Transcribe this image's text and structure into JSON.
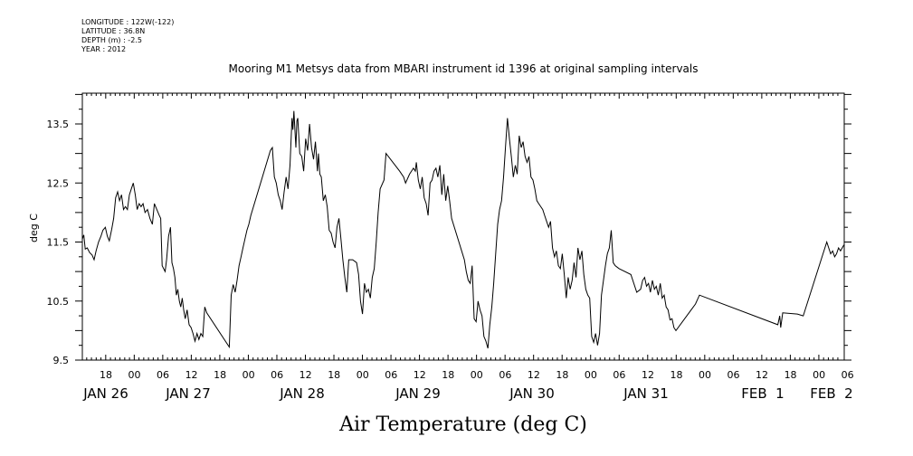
{
  "meta": {
    "longitude": "LONGITUDE : 122W(-122)",
    "latitude": "LATITUDE : 36.8N",
    "depth": "DEPTH (m) : -2.5",
    "year": "YEAR : 2012"
  },
  "chart_data": {
    "type": "line",
    "title": "Mooring M1 Metsys data from MBARI instrument id 1396 at original sampling intervals",
    "xlabel": "Air Temperature (deg C)",
    "ylabel": "deg C",
    "ylim": [
      9.5,
      14.0
    ],
    "yticks": [
      9.5,
      10.5,
      11.5,
      12.5,
      13.5
    ],
    "xlim_hours": [
      0,
      168
    ],
    "x_start": "2012-01-25T12:00",
    "hour_tick_labels": [
      {
        "t": 6,
        "label": "18"
      },
      {
        "t": 12,
        "label": "00"
      },
      {
        "t": 18,
        "label": "06"
      },
      {
        "t": 24,
        "label": "12"
      },
      {
        "t": 30,
        "label": "18"
      },
      {
        "t": 36,
        "label": "00"
      },
      {
        "t": 42,
        "label": "06"
      },
      {
        "t": 48,
        "label": "12"
      },
      {
        "t": 54,
        "label": "18"
      },
      {
        "t": 60,
        "label": "00"
      },
      {
        "t": 66,
        "label": "06"
      },
      {
        "t": 72,
        "label": "12"
      },
      {
        "t": 78,
        "label": "18"
      },
      {
        "t": 84,
        "label": "00"
      },
      {
        "t": 90,
        "label": "06"
      },
      {
        "t": 96,
        "label": "12"
      },
      {
        "t": 102,
        "label": "18"
      },
      {
        "t": 108,
        "label": "00"
      },
      {
        "t": 114,
        "label": "06"
      },
      {
        "t": 120,
        "label": "12"
      },
      {
        "t": 126,
        "label": "18"
      },
      {
        "t": 132,
        "label": "00"
      },
      {
        "t": 138,
        "label": "06"
      },
      {
        "t": 144,
        "label": "12"
      },
      {
        "t": 150,
        "label": "18"
      },
      {
        "t": 156,
        "label": "00"
      },
      {
        "t": 162,
        "label": "06"
      },
      {
        "t": 168,
        "label": "12"
      },
      {
        "t": 174,
        "label": "18"
      },
      {
        "t": 180,
        "label": "00"
      }
    ],
    "day_labels": [
      {
        "t": 0,
        "label": "JAN 26"
      },
      {
        "t": 24,
        "label": "JAN 27"
      },
      {
        "t": 48,
        "label": "JAN 28"
      },
      {
        "t": 72,
        "label": "JAN 29"
      },
      {
        "t": 96,
        "label": "JAN 30"
      },
      {
        "t": 120,
        "label": "JAN 31"
      },
      {
        "t": 144,
        "label": "FEB  1"
      },
      {
        "t": 162,
        "label": "FEB  2"
      }
    ],
    "series": [
      {
        "color": "#000000",
        "points": [
          [
            0.0,
            11.55
          ],
          [
            0.3,
            11.62
          ],
          [
            0.6,
            11.38
          ],
          [
            1.0,
            11.4
          ],
          [
            1.5,
            11.32
          ],
          [
            2.0,
            11.28
          ],
          [
            2.4,
            11.2
          ],
          [
            2.8,
            11.35
          ],
          [
            3.3,
            11.5
          ],
          [
            3.8,
            11.6
          ],
          [
            4.2,
            11.7
          ],
          [
            4.7,
            11.75
          ],
          [
            5.1,
            11.6
          ],
          [
            5.5,
            11.52
          ],
          [
            6.0,
            11.72
          ],
          [
            6.4,
            11.9
          ],
          [
            6.8,
            12.25
          ],
          [
            7.2,
            12.35
          ],
          [
            7.6,
            12.2
          ],
          [
            8.0,
            12.3
          ],
          [
            8.4,
            12.05
          ],
          [
            8.8,
            12.1
          ],
          [
            9.2,
            12.05
          ],
          [
            9.6,
            12.3
          ],
          [
            10.0,
            12.4
          ],
          [
            10.4,
            12.5
          ],
          [
            10.8,
            12.3
          ],
          [
            11.2,
            12.05
          ],
          [
            11.6,
            12.15
          ],
          [
            12.0,
            12.1
          ],
          [
            12.4,
            12.15
          ],
          [
            12.8,
            12.0
          ],
          [
            13.3,
            12.05
          ],
          [
            13.8,
            11.9
          ],
          [
            14.3,
            11.8
          ],
          [
            14.7,
            12.15
          ],
          [
            15.2,
            12.05
          ],
          [
            15.7,
            11.95
          ],
          [
            16.0,
            11.9
          ],
          [
            16.3,
            11.1
          ],
          [
            16.6,
            11.05
          ],
          [
            16.9,
            11.0
          ],
          [
            17.2,
            11.2
          ],
          [
            17.6,
            11.6
          ],
          [
            18.0,
            11.75
          ],
          [
            18.3,
            11.15
          ],
          [
            18.6,
            11.05
          ],
          [
            18.9,
            10.9
          ],
          [
            19.2,
            10.6
          ],
          [
            19.5,
            10.7
          ],
          [
            19.8,
            10.5
          ],
          [
            20.1,
            10.4
          ],
          [
            20.4,
            10.55
          ],
          [
            20.7,
            10.35
          ],
          [
            21.0,
            10.2
          ],
          [
            21.4,
            10.35
          ],
          [
            21.8,
            10.1
          ],
          [
            22.2,
            10.05
          ],
          [
            22.6,
            9.95
          ],
          [
            23.0,
            9.82
          ],
          [
            23.4,
            9.95
          ],
          [
            23.8,
            9.85
          ],
          [
            24.2,
            9.95
          ],
          [
            24.6,
            9.9
          ],
          [
            25.0,
            10.4
          ],
          [
            25.4,
            10.3
          ],
          [
            30.0,
            9.72
          ],
          [
            30.4,
            10.6
          ],
          [
            30.8,
            10.78
          ],
          [
            31.2,
            10.65
          ],
          [
            31.6,
            10.85
          ],
          [
            32.0,
            11.1
          ],
          [
            32.4,
            11.25
          ],
          [
            32.8,
            11.4
          ],
          [
            33.2,
            11.55
          ],
          [
            33.6,
            11.7
          ],
          [
            34.0,
            11.8
          ],
          [
            34.4,
            11.95
          ],
          [
            38.4,
            13.05
          ],
          [
            38.8,
            13.1
          ],
          [
            39.2,
            12.6
          ],
          [
            39.6,
            12.5
          ],
          [
            40.0,
            12.3
          ],
          [
            40.4,
            12.2
          ],
          [
            40.8,
            12.05
          ],
          [
            41.2,
            12.35
          ],
          [
            41.6,
            12.6
          ],
          [
            42.0,
            12.4
          ],
          [
            42.4,
            12.8
          ],
          [
            42.8,
            13.6
          ],
          [
            43.0,
            13.4
          ],
          [
            43.2,
            13.72
          ],
          [
            43.6,
            13.1
          ],
          [
            43.8,
            13.55
          ],
          [
            44.0,
            13.6
          ],
          [
            44.4,
            13.0
          ],
          [
            44.8,
            12.95
          ],
          [
            45.2,
            12.7
          ],
          [
            45.6,
            13.25
          ],
          [
            46.0,
            13.05
          ],
          [
            46.4,
            13.5
          ],
          [
            46.8,
            13.1
          ],
          [
            47.2,
            12.9
          ],
          [
            47.6,
            13.2
          ],
          [
            48.0,
            12.7
          ],
          [
            48.2,
            13.0
          ],
          [
            48.5,
            12.65
          ],
          [
            48.8,
            12.6
          ],
          [
            49.2,
            12.2
          ],
          [
            49.6,
            12.3
          ],
          [
            50.0,
            12.1
          ],
          [
            50.4,
            11.7
          ],
          [
            50.8,
            11.65
          ],
          [
            51.2,
            11.5
          ],
          [
            51.6,
            11.4
          ],
          [
            52.0,
            11.75
          ],
          [
            52.4,
            11.9
          ],
          [
            52.8,
            11.55
          ],
          [
            53.2,
            11.2
          ],
          [
            53.6,
            10.9
          ],
          [
            54.0,
            10.65
          ],
          [
            54.4,
            11.2
          ],
          [
            55.2,
            11.2
          ],
          [
            56.0,
            11.15
          ],
          [
            56.4,
            10.95
          ],
          [
            56.8,
            10.5
          ],
          [
            57.2,
            10.28
          ],
          [
            57.6,
            10.8
          ],
          [
            58.0,
            10.65
          ],
          [
            58.4,
            10.7
          ],
          [
            58.8,
            10.55
          ],
          [
            59.2,
            10.9
          ],
          [
            59.6,
            11.05
          ],
          [
            60.0,
            11.5
          ],
          [
            60.4,
            12.0
          ],
          [
            60.8,
            12.4
          ],
          [
            61.6,
            12.55
          ],
          [
            62.0,
            13.0
          ],
          [
            64.8,
            12.7
          ],
          [
            65.6,
            12.6
          ],
          [
            66.0,
            12.5
          ],
          [
            66.8,
            12.65
          ],
          [
            67.6,
            12.75
          ],
          [
            68.0,
            12.7
          ],
          [
            68.2,
            12.85
          ],
          [
            68.6,
            12.55
          ],
          [
            69.0,
            12.4
          ],
          [
            69.4,
            12.6
          ],
          [
            69.8,
            12.25
          ],
          [
            70.2,
            12.15
          ],
          [
            70.6,
            11.95
          ],
          [
            71.0,
            12.5
          ],
          [
            71.4,
            12.55
          ],
          [
            71.8,
            12.7
          ],
          [
            72.2,
            12.75
          ],
          [
            72.6,
            12.6
          ],
          [
            73.0,
            12.8
          ],
          [
            73.4,
            12.3
          ],
          [
            73.8,
            12.65
          ],
          [
            74.2,
            12.2
          ],
          [
            74.6,
            12.45
          ],
          [
            75.0,
            12.2
          ],
          [
            75.4,
            11.9
          ],
          [
            78.0,
            11.2
          ],
          [
            78.4,
            11.0
          ],
          [
            78.8,
            10.85
          ],
          [
            79.2,
            10.8
          ],
          [
            79.6,
            11.1
          ],
          [
            80.0,
            10.2
          ],
          [
            80.4,
            10.15
          ],
          [
            80.8,
            10.5
          ],
          [
            81.2,
            10.35
          ],
          [
            81.6,
            10.25
          ],
          [
            82.0,
            9.9
          ],
          [
            82.4,
            9.82
          ],
          [
            82.8,
            9.7
          ],
          [
            83.2,
            10.1
          ],
          [
            83.6,
            10.4
          ],
          [
            84.0,
            10.8
          ],
          [
            84.4,
            11.3
          ],
          [
            84.8,
            11.8
          ],
          [
            85.2,
            12.05
          ],
          [
            85.6,
            12.2
          ],
          [
            86.0,
            12.6
          ],
          [
            86.4,
            13.1
          ],
          [
            86.8,
            13.6
          ],
          [
            87.2,
            13.25
          ],
          [
            87.6,
            12.95
          ],
          [
            88.0,
            12.6
          ],
          [
            88.4,
            12.8
          ],
          [
            88.8,
            12.65
          ],
          [
            89.2,
            13.3
          ],
          [
            89.6,
            13.1
          ],
          [
            90.0,
            13.2
          ],
          [
            90.4,
            12.95
          ],
          [
            90.8,
            12.85
          ],
          [
            91.2,
            12.95
          ],
          [
            91.6,
            12.6
          ],
          [
            92.0,
            12.55
          ],
          [
            92.4,
            12.4
          ],
          [
            92.8,
            12.2
          ],
          [
            93.2,
            12.15
          ],
          [
            93.6,
            12.1
          ],
          [
            94.0,
            12.05
          ],
          [
            94.4,
            11.95
          ],
          [
            94.8,
            11.85
          ],
          [
            95.2,
            11.75
          ],
          [
            95.6,
            11.85
          ],
          [
            96.0,
            11.4
          ],
          [
            96.4,
            11.25
          ],
          [
            96.8,
            11.35
          ],
          [
            97.2,
            11.1
          ],
          [
            97.6,
            11.05
          ],
          [
            98.0,
            11.3
          ],
          [
            98.4,
            10.95
          ],
          [
            98.8,
            10.55
          ],
          [
            99.2,
            10.9
          ],
          [
            99.6,
            10.7
          ],
          [
            100.0,
            10.85
          ],
          [
            100.4,
            11.15
          ],
          [
            100.8,
            10.9
          ],
          [
            101.2,
            11.4
          ],
          [
            101.6,
            11.2
          ],
          [
            102.0,
            11.35
          ],
          [
            102.4,
            10.95
          ],
          [
            102.8,
            10.7
          ],
          [
            103.2,
            10.6
          ],
          [
            103.6,
            10.55
          ],
          [
            104.0,
            9.9
          ],
          [
            104.4,
            9.8
          ],
          [
            104.8,
            9.95
          ],
          [
            105.2,
            9.75
          ],
          [
            105.6,
            9.95
          ],
          [
            106.0,
            10.6
          ],
          [
            106.4,
            10.85
          ],
          [
            106.8,
            11.1
          ],
          [
            107.2,
            11.3
          ],
          [
            107.6,
            11.4
          ],
          [
            108.0,
            11.7
          ],
          [
            108.4,
            11.15
          ],
          [
            108.8,
            11.1
          ],
          [
            109.6,
            11.05
          ],
          [
            112.0,
            10.95
          ],
          [
            113.2,
            10.65
          ],
          [
            114.0,
            10.7
          ],
          [
            114.4,
            10.85
          ],
          [
            114.8,
            10.9
          ],
          [
            115.2,
            10.75
          ],
          [
            115.6,
            10.8
          ],
          [
            116.0,
            10.65
          ],
          [
            116.4,
            10.85
          ],
          [
            116.8,
            10.7
          ],
          [
            117.2,
            10.75
          ],
          [
            117.6,
            10.6
          ],
          [
            118.0,
            10.8
          ],
          [
            118.4,
            10.55
          ],
          [
            118.8,
            10.6
          ],
          [
            119.2,
            10.4
          ],
          [
            119.6,
            10.35
          ],
          [
            120.0,
            10.18
          ],
          [
            120.4,
            10.2
          ],
          [
            120.8,
            10.05
          ],
          [
            121.2,
            10.0
          ],
          [
            125.2,
            10.45
          ],
          [
            126.0,
            10.6
          ],
          [
            142.0,
            10.1
          ],
          [
            142.4,
            10.25
          ],
          [
            142.6,
            10.05
          ],
          [
            143.0,
            10.3
          ],
          [
            146.0,
            10.28
          ],
          [
            147.2,
            10.25
          ],
          [
            152.0,
            11.5
          ],
          [
            152.8,
            11.3
          ],
          [
            153.2,
            11.35
          ],
          [
            153.6,
            11.25
          ],
          [
            154.0,
            11.3
          ],
          [
            154.4,
            11.4
          ],
          [
            154.8,
            11.35
          ],
          [
            155.5,
            11.45
          ]
        ]
      }
    ]
  }
}
